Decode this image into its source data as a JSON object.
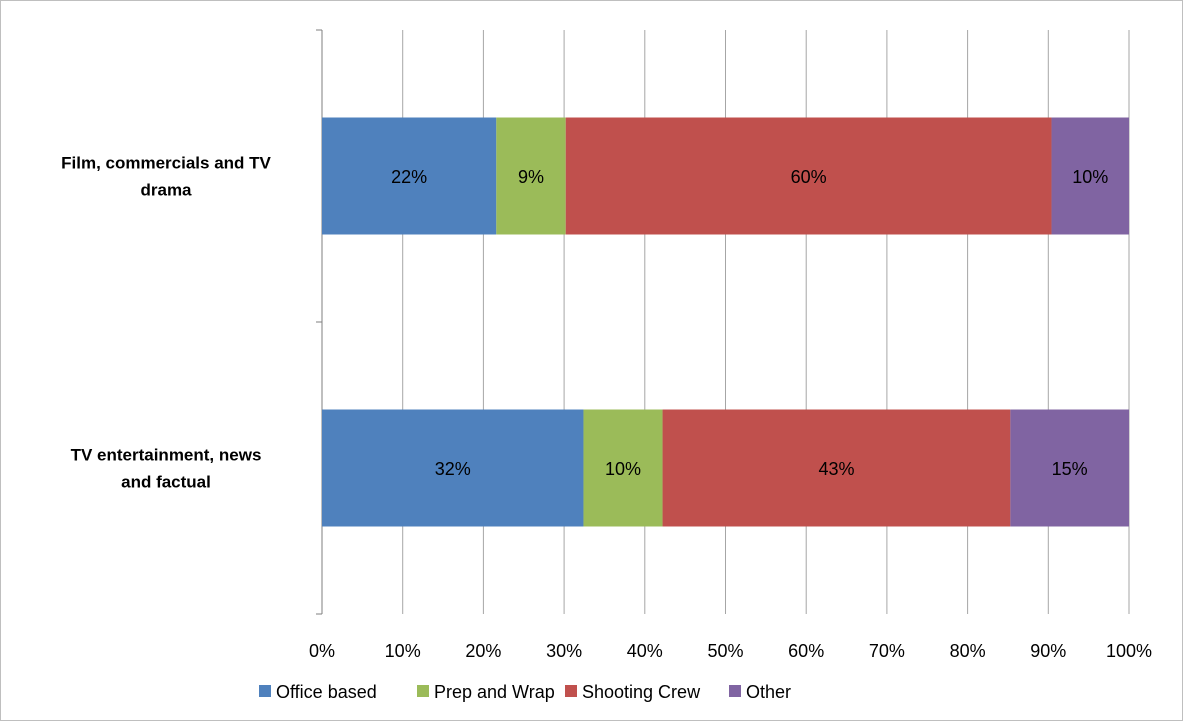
{
  "chart_data": {
    "type": "bar",
    "orientation": "horizontal",
    "stacked": "100%",
    "categories": [
      [
        "Film, commercials and TV",
        "drama"
      ],
      [
        "TV entertainment, news",
        "and factual"
      ]
    ],
    "series": [
      {
        "name": "Office based",
        "color": "#4f81bd",
        "values": [
          21.6,
          32.4
        ],
        "labels": [
          "22%",
          "32%"
        ]
      },
      {
        "name": "Prep and Wrap",
        "color": "#9bbb59",
        "values": [
          8.6,
          9.8
        ],
        "labels": [
          "9%",
          "10%"
        ]
      },
      {
        "name": "Shooting Crew",
        "color": "#c0504d",
        "values": [
          60.2,
          43.1
        ],
        "labels": [
          "60%",
          "43%"
        ]
      },
      {
        "name": "Other",
        "color": "#8064a2",
        "values": [
          9.6,
          14.7
        ],
        "labels": [
          "10%",
          "15%"
        ]
      }
    ],
    "xlim": [
      0,
      100
    ],
    "xticks": [
      "0%",
      "10%",
      "20%",
      "30%",
      "40%",
      "50%",
      "60%",
      "70%",
      "80%",
      "90%",
      "100%"
    ],
    "grid": "vertical",
    "legend": "bottom"
  }
}
